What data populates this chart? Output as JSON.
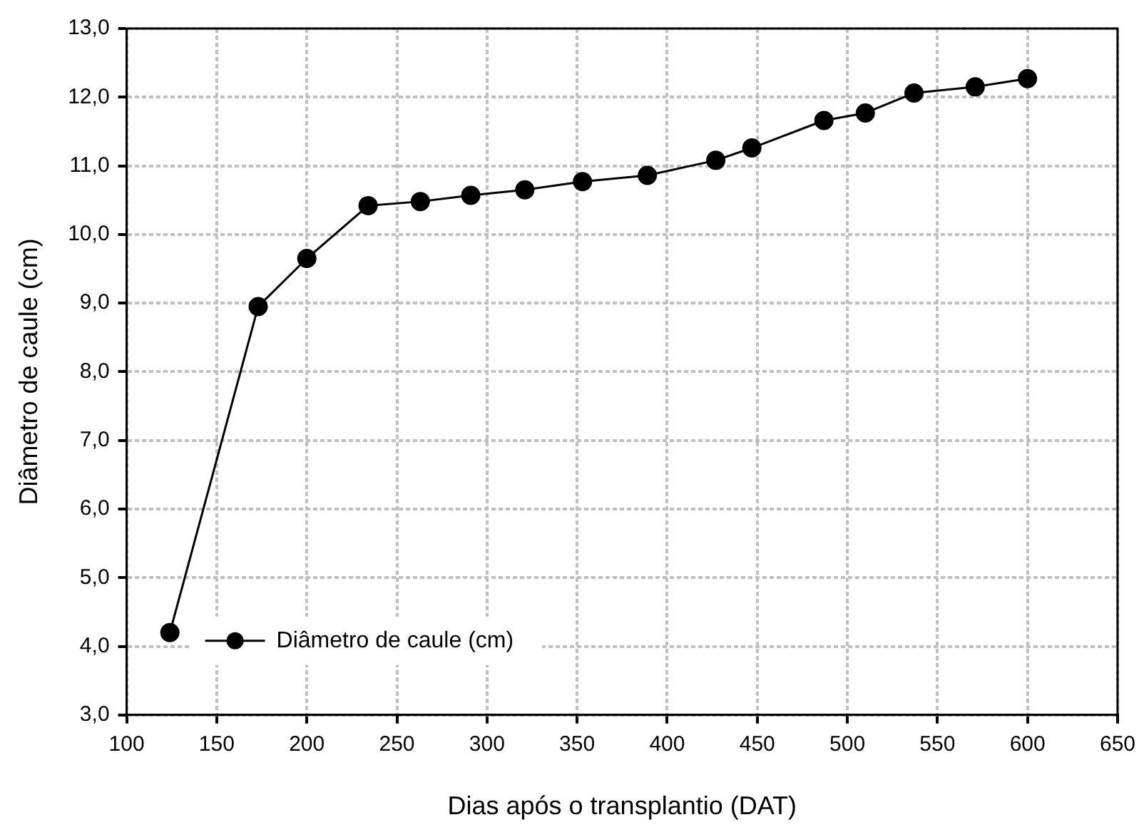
{
  "chart_data": {
    "type": "line",
    "xlabel": "Dias após o transplantio (DAT)",
    "ylabel": "Diâmetro de caule (cm)",
    "x": [
      124,
      173,
      200,
      234,
      263,
      291,
      321,
      353,
      389,
      427,
      447,
      487,
      510,
      537,
      571,
      600
    ],
    "series": [
      {
        "name": "Diâmetro de caule (cm)",
        "color": "#000000",
        "values": [
          4.2,
          8.95,
          9.65,
          10.42,
          10.48,
          10.57,
          10.65,
          10.77,
          10.86,
          11.08,
          11.26,
          11.66,
          11.77,
          12.06,
          12.15,
          12.27
        ]
      }
    ],
    "xlim": [
      100,
      650
    ],
    "xticks": [
      100,
      150,
      200,
      250,
      300,
      350,
      400,
      450,
      500,
      550,
      600,
      650
    ],
    "ylim": [
      3,
      13
    ],
    "yticks": [
      {
        "value": 3,
        "label": "3,0"
      },
      {
        "value": 4,
        "label": "4,0"
      },
      {
        "value": 5,
        "label": "5,0"
      },
      {
        "value": 6,
        "label": "6,0"
      },
      {
        "value": 7,
        "label": "7,0"
      },
      {
        "value": 8,
        "label": "8,0"
      },
      {
        "value": 9,
        "label": "9,0"
      },
      {
        "value": 10,
        "label": "10,0"
      },
      {
        "value": 11,
        "label": "11,0"
      },
      {
        "value": 12,
        "label": "12,0"
      },
      {
        "value": 13,
        "label": "13,0"
      }
    ],
    "grid": true,
    "legend": "bottom left",
    "marker": "circle",
    "line_style": "solid"
  }
}
